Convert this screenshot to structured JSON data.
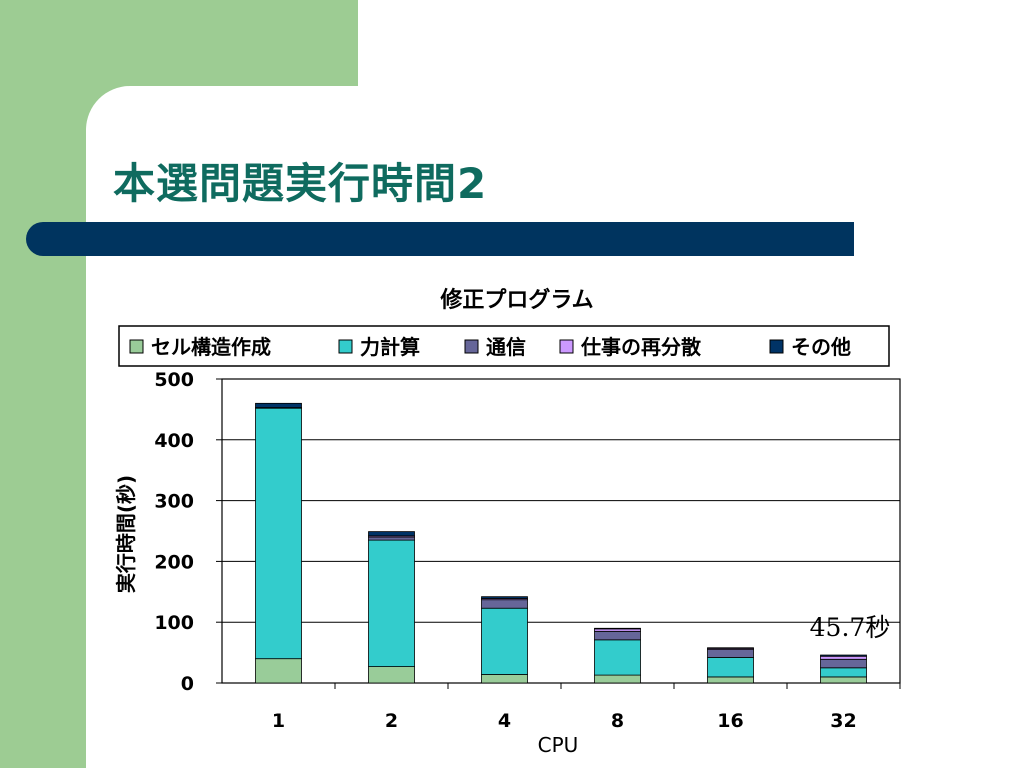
{
  "slide": {
    "title": "本選問題実行時間2"
  },
  "colors": {
    "background": "#ffffff",
    "accent_green": "#9dcc93",
    "title_text": "#0f6b5f",
    "title_bar": "#00345f"
  },
  "chart_data": {
    "type": "bar",
    "stacked": true,
    "title": "修正プログラム",
    "xlabel": "CPU",
    "ylabel": "実行時間(秒)",
    "categories": [
      "1",
      "2",
      "4",
      "8",
      "16",
      "32"
    ],
    "ylim": [
      0,
      500
    ],
    "yticks": [
      "0",
      "100",
      "200",
      "300",
      "400",
      "500"
    ],
    "grid": true,
    "legend_position": "top",
    "series": [
      {
        "name": "セル構造作成",
        "color": "#99cc99",
        "values": [
          40,
          27,
          14,
          13,
          10,
          10
        ]
      },
      {
        "name": "力計算",
        "color": "#33cccc",
        "values": [
          412,
          208,
          109,
          58,
          32,
          15
        ]
      },
      {
        "name": "通信",
        "color": "#666699",
        "values": [
          1,
          5,
          14,
          14,
          13,
          14
        ]
      },
      {
        "name": "仕事の再分散",
        "color": "#cc99ff",
        "values": [
          0,
          2,
          2,
          4,
          2,
          5
        ]
      },
      {
        "name": "その他",
        "color": "#003366",
        "values": [
          7,
          7,
          3,
          1,
          1,
          2
        ]
      }
    ],
    "annotation": "45.7秒"
  }
}
